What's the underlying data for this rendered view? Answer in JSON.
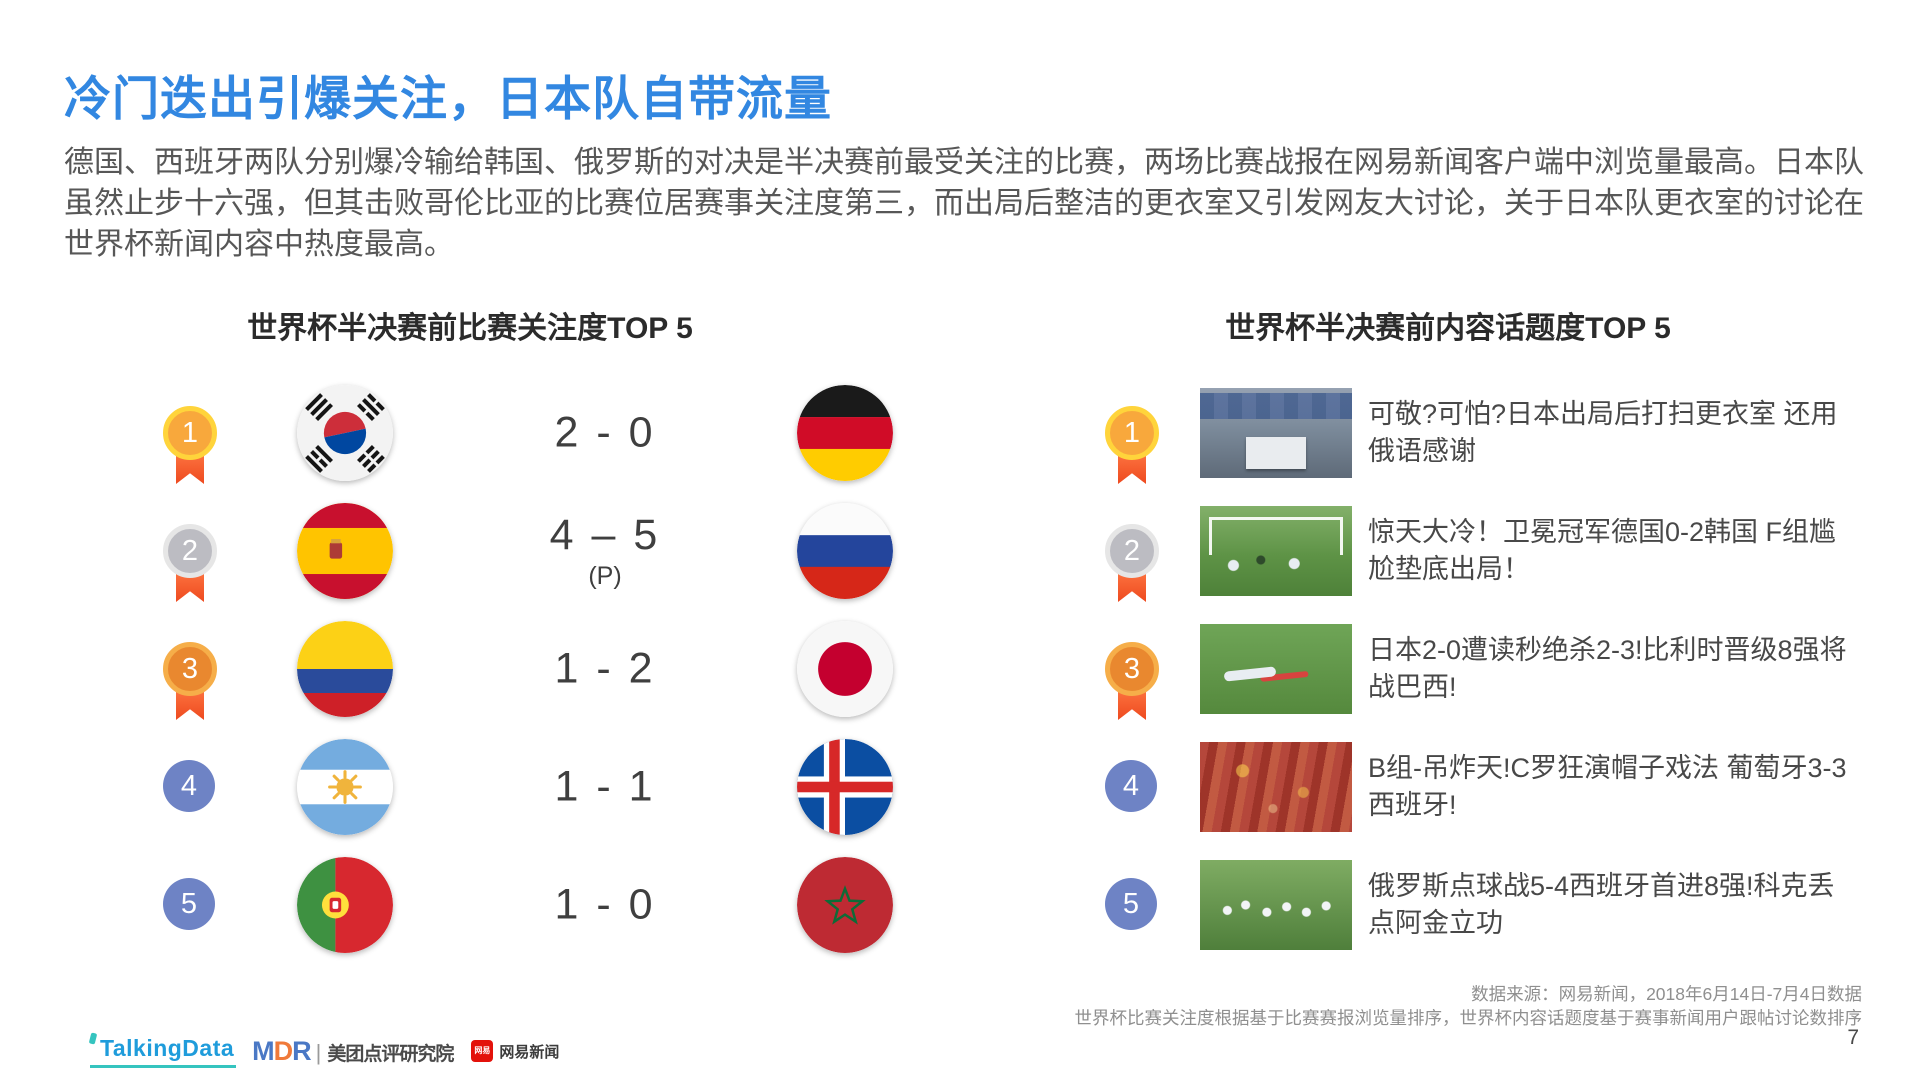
{
  "page": {
    "title": "冷门迭出引爆关注，日本队自带流量",
    "paragraph": "德国、西班牙两队分别爆冷输给韩国、俄罗斯的对决是半决赛前最受关注的比赛，两场比赛战报在网易新闻客户端中浏览量最高。日本队虽然止步十六强，但其击败哥伦比亚的比赛位居赛事关注度第三，而出局后整洁的更衣室又引发网友大讨论，关于日本队更衣室的讨论在世界杯新闻内容中热度最高。",
    "page_number": "7"
  },
  "left_panel": {
    "heading": "世界杯半决赛前比赛关注度TOP 5",
    "rows": [
      {
        "rank": "1",
        "medal": "gold",
        "home": {
          "country": "South Korea",
          "flag": "kr"
        },
        "score": "2 - 0",
        "away": {
          "country": "Germany",
          "flag": "de"
        }
      },
      {
        "rank": "2",
        "medal": "silver",
        "home": {
          "country": "Spain",
          "flag": "es"
        },
        "score": "4 – 5",
        "note": "(P)",
        "away": {
          "country": "Russia",
          "flag": "ru"
        }
      },
      {
        "rank": "3",
        "medal": "bronze",
        "home": {
          "country": "Colombia",
          "flag": "co"
        },
        "score": "1 - 2",
        "away": {
          "country": "Japan",
          "flag": "jp"
        }
      },
      {
        "rank": "4",
        "medal": "plain",
        "home": {
          "country": "Argentina",
          "flag": "ar"
        },
        "score": "1 - 1",
        "away": {
          "country": "Iceland",
          "flag": "is"
        }
      },
      {
        "rank": "5",
        "medal": "plain",
        "home": {
          "country": "Portugal",
          "flag": "pt"
        },
        "score": "1 - 0",
        "away": {
          "country": "Morocco",
          "flag": "ma"
        }
      }
    ]
  },
  "right_panel": {
    "heading": "世界杯半决赛前内容话题度TOP 5",
    "rows": [
      {
        "rank": "1",
        "medal": "gold",
        "thumbnail": "locker-room",
        "headline": "可敬?可怕?日本出局后打扫更衣室 还用俄语感谢"
      },
      {
        "rank": "2",
        "medal": "silver",
        "thumbnail": "goal-scene",
        "headline": "惊天大冷！卫冕冠军德国0-2韩国 F组尴尬垫底出局！"
      },
      {
        "rank": "3",
        "medal": "bronze",
        "thumbnail": "player-on-pitch",
        "headline": "日本2-0遭读秒绝杀2-3!比利时晋级8强将战巴西!"
      },
      {
        "rank": "4",
        "medal": "plain",
        "thumbnail": "red-crowd",
        "headline": "B组-吊炸天!C罗狂演帽子戏法 葡萄牙3-3西班牙!"
      },
      {
        "rank": "5",
        "medal": "plain",
        "thumbnail": "team-celebration",
        "headline": "俄罗斯点球战5-4西班牙首进8强!科克丢点阿金立功"
      }
    ]
  },
  "footer": {
    "source_line1": "数据来源：网易新闻，2018年6月14日-7月4日数据",
    "source_line2": "世界杯比赛关注度根据基于比赛赛报浏览量排序，世界杯内容话题度基于赛事新闻用户跟帖讨论数排序",
    "logos": {
      "talkingdata": "TalkingData",
      "mdr_letters": [
        "M",
        "D",
        "R"
      ],
      "mdr_text": "美团点评研究院",
      "netease_badge": "网易",
      "netease_text": "网易新闻"
    }
  },
  "colors": {
    "title_blue": "#3287E1",
    "badge_blue": "#6E83C5",
    "ribbon_light": "#FF7A45",
    "ribbon_dark": "#EE4A1F",
    "gold_ring": "#FFD43B",
    "gold_fill": "#F8A83C",
    "silver_ring": "#E6E6E6",
    "silver_fill": "#BCBCC2",
    "bronze_ring": "#F6AE49",
    "bronze_fill": "#E9882F",
    "talkingdata_blue": "#1F9CDB",
    "talkingdata_teal": "#35C4BF",
    "mdr_letter_colors": [
      "#4A78C5",
      "#F07A3A",
      "#4A78C5"
    ],
    "netease_red": "#E3120B"
  }
}
